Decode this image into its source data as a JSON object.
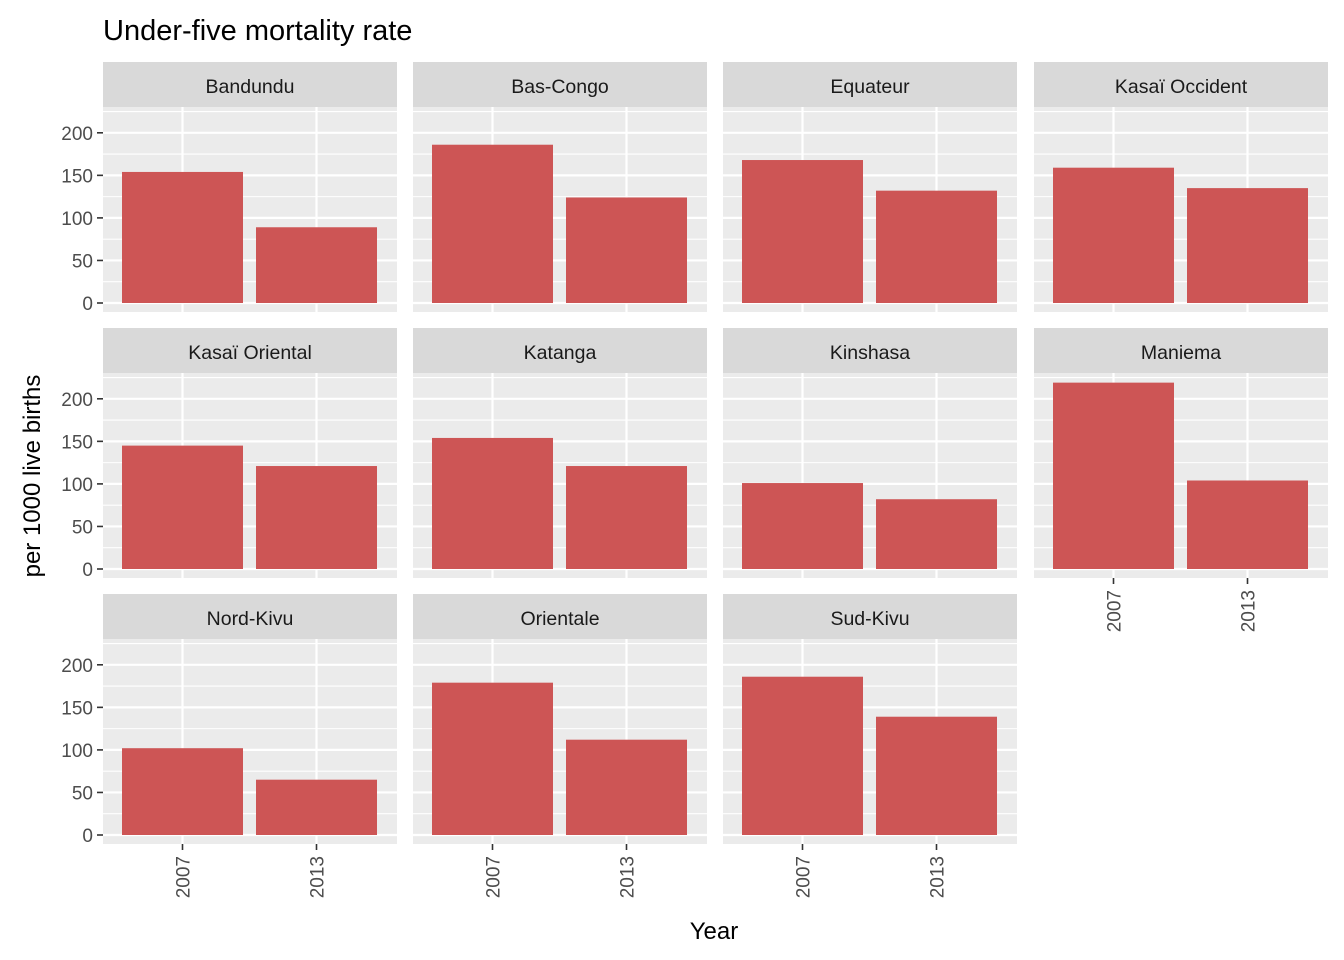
{
  "chart_data": {
    "type": "bar",
    "title": "Under-five mortality rate",
    "xlabel": "Year",
    "ylabel": "per 1000 live births",
    "categories": [
      "2007",
      "2013"
    ],
    "ylim": [
      0,
      230
    ],
    "yticks": [
      0,
      50,
      100,
      150,
      200
    ],
    "grid": true,
    "facet_layout": {
      "rows": 3,
      "cols": 4
    },
    "colors": {
      "bar": "#CD5555",
      "panel_background": "#EBEBEB",
      "strip_background": "#D9D9D9",
      "grid": "#FFFFFF"
    },
    "panels": [
      {
        "name": "Bandundu",
        "values": [
          154,
          89
        ]
      },
      {
        "name": "Bas-Congo",
        "values": [
          186,
          124
        ]
      },
      {
        "name": "Equateur",
        "values": [
          168,
          132
        ]
      },
      {
        "name": "Kasaï Occident",
        "values": [
          159,
          135
        ]
      },
      {
        "name": "Kasaï Oriental",
        "values": [
          145,
          121
        ]
      },
      {
        "name": "Katanga",
        "values": [
          154,
          121
        ]
      },
      {
        "name": "Kinshasa",
        "values": [
          101,
          82
        ]
      },
      {
        "name": "Maniema",
        "values": [
          219,
          104
        ]
      },
      {
        "name": "Nord-Kivu",
        "values": [
          102,
          65
        ]
      },
      {
        "name": "Orientale",
        "values": [
          179,
          112
        ]
      },
      {
        "name": "Sud-Kivu",
        "values": [
          186,
          139
        ]
      }
    ]
  }
}
